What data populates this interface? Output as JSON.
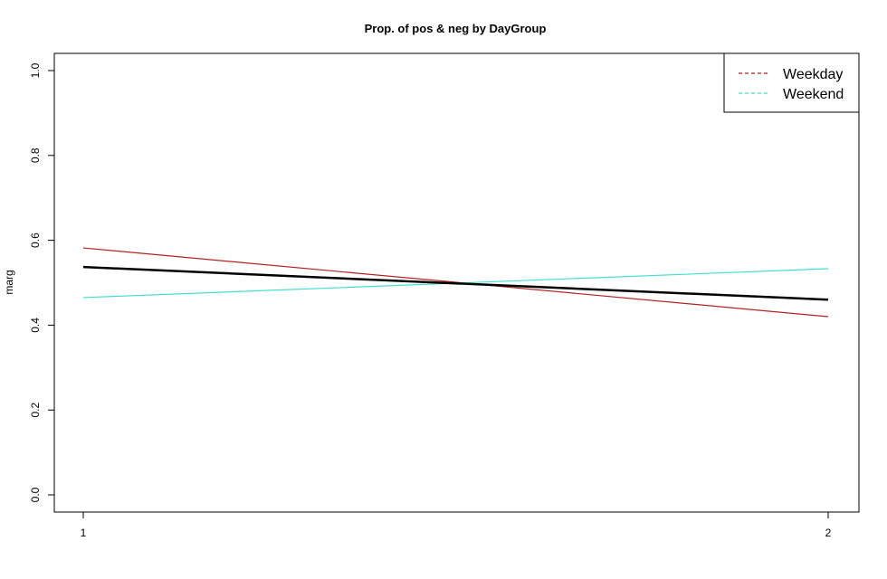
{
  "chart_data": {
    "type": "line",
    "title": "Prop. of pos & neg by DayGroup",
    "xlabel": "",
    "ylabel": "marg",
    "x": [
      1,
      2
    ],
    "x_ticks": [
      "1",
      "2"
    ],
    "ylim": [
      0,
      1
    ],
    "y_ticks": [
      "0.0",
      "0.2",
      "0.4",
      "0.6",
      "0.8",
      "1.0"
    ],
    "grid": false,
    "legend_position": "top-right",
    "overall": {
      "values": [
        0.537,
        0.46
      ],
      "color": "#000000"
    },
    "series": [
      {
        "name": "Weekday",
        "values": [
          0.582,
          0.42
        ],
        "color": "#b22222"
      },
      {
        "name": "Weekend",
        "values": [
          0.465,
          0.533
        ],
        "color": "#40e0d0"
      }
    ]
  }
}
